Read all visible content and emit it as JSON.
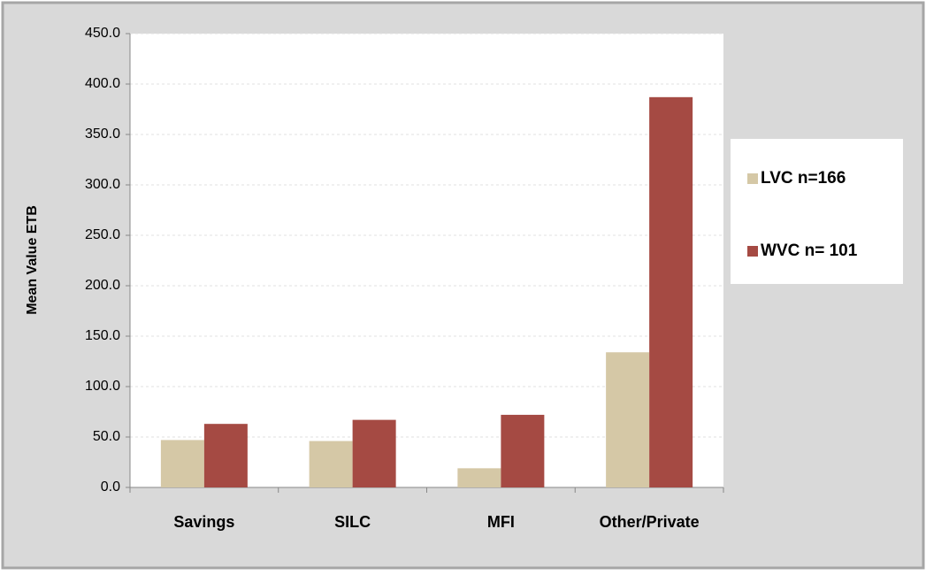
{
  "chart_data": {
    "type": "bar",
    "y_label": "Mean Value ETB",
    "categories": [
      "Savings",
      "SILC",
      "MFI",
      "Other/Private"
    ],
    "series": [
      {
        "name": "LVC n=166",
        "color": "#d5c8a6",
        "values": [
          47,
          46,
          19,
          134
        ]
      },
      {
        "name": "WVC n= 101",
        "color": "#a54a43",
        "values": [
          63,
          67,
          72,
          387
        ]
      }
    ],
    "ylim": [
      0,
      450
    ],
    "yticks": [
      {
        "value": 0,
        "label": "0.0"
      },
      {
        "value": 50,
        "label": "50.0"
      },
      {
        "value": 100,
        "label": "100.0"
      },
      {
        "value": 150,
        "label": "150.0"
      },
      {
        "value": 200,
        "label": "200.0"
      },
      {
        "value": 250,
        "label": "250.0"
      },
      {
        "value": 300,
        "label": "300.0"
      },
      {
        "value": 350,
        "label": "350.0"
      },
      {
        "value": 400,
        "label": "400.0"
      },
      {
        "value": 450,
        "label": "450.0"
      }
    ],
    "grid": true,
    "legend": "right"
  }
}
